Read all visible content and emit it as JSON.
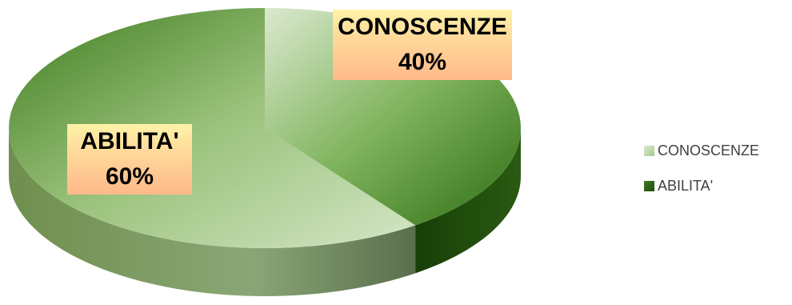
{
  "chart_data": {
    "type": "pie",
    "categories": [
      "CONOSCENZE",
      "ABILITA'"
    ],
    "values": [
      40,
      60
    ],
    "value_labels": [
      "40%",
      "60%"
    ],
    "colors": [
      "#a6c98b",
      "#3f7a22"
    ],
    "legend_placement": "right",
    "style": "3d-pie"
  }
}
